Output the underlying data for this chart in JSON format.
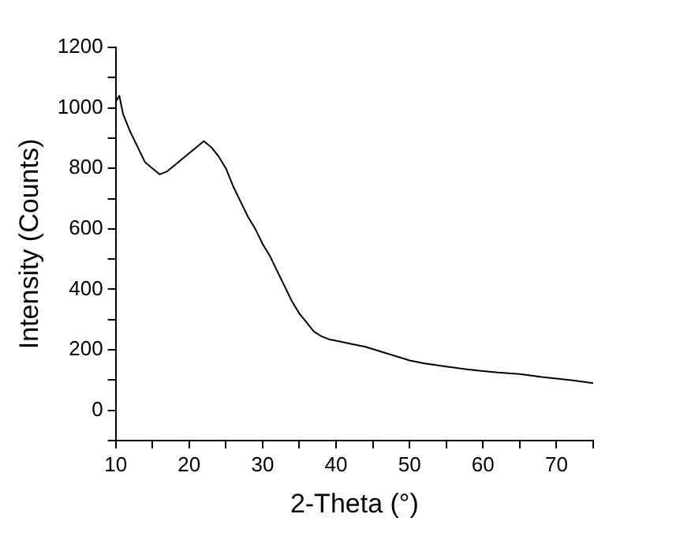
{
  "chart_data": {
    "type": "line",
    "xlabel": "2-Theta (°)",
    "ylabel": "Intensity (Counts)",
    "x": [
      10,
      10.5,
      11,
      12,
      13,
      14,
      15,
      16,
      17,
      18,
      19,
      20,
      21,
      22,
      23,
      24,
      25,
      26,
      27,
      28,
      29,
      30,
      31,
      32,
      33,
      34,
      35,
      36,
      37,
      38,
      39,
      40,
      42,
      44,
      46,
      48,
      50,
      52,
      55,
      58,
      60,
      62,
      65,
      68,
      70,
      72,
      75
    ],
    "series": [
      {
        "color": "#000000",
        "values": [
          1020,
          1040,
          980,
          920,
          870,
          820,
          800,
          780,
          790,
          810,
          830,
          850,
          870,
          890,
          870,
          840,
          800,
          740,
          690,
          640,
          600,
          550,
          510,
          460,
          410,
          360,
          320,
          290,
          260,
          245,
          235,
          230,
          220,
          210,
          195,
          180,
          165,
          155,
          145,
          135,
          130,
          125,
          120,
          110,
          105,
          100,
          90
        ]
      }
    ],
    "xlim": [
      10,
      75
    ],
    "xticks": [
      10,
      {
        "value": 15,
        "label": null
      },
      20,
      {
        "value": 25,
        "label": null
      },
      30,
      {
        "value": 35,
        "label": null
      },
      40,
      {
        "value": 45,
        "label": null
      },
      50,
      {
        "value": 55,
        "label": null
      },
      60,
      {
        "value": 65,
        "label": null
      },
      70,
      {
        "value": 75,
        "label": null
      }
    ],
    "ylim": [
      -100,
      1200
    ],
    "yticks": [
      {
        "value": -100,
        "label": null
      },
      0,
      {
        "value": 100,
        "label": null
      },
      200,
      {
        "value": 300,
        "label": null
      },
      400,
      {
        "value": 500,
        "label": null
      },
      600,
      {
        "value": 700,
        "label": null
      },
      800,
      {
        "value": 900,
        "label": null
      },
      1000,
      {
        "value": 1100,
        "label": null
      },
      1200
    ],
    "grid": false,
    "legend": false,
    "marker": "none",
    "line_style": "solid"
  }
}
